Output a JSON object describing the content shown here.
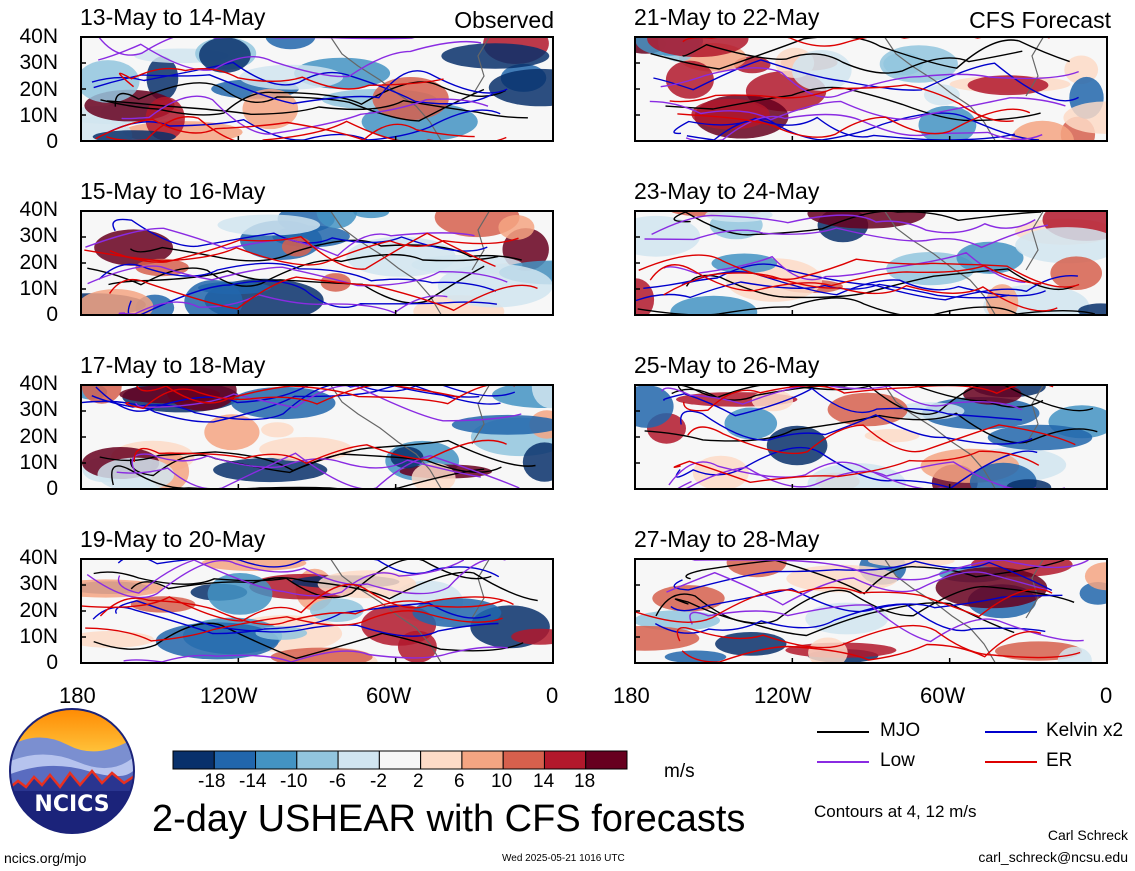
{
  "header": {
    "left_label": "Observed",
    "right_label": "CFS Forecast"
  },
  "panels_left": [
    {
      "title": "13-May to 14-May"
    },
    {
      "title": "15-May to 16-May"
    },
    {
      "title": "17-May to 18-May"
    },
    {
      "title": "19-May to 20-May"
    }
  ],
  "panels_right": [
    {
      "title": "21-May to 22-May"
    },
    {
      "title": "23-May to 24-May"
    },
    {
      "title": "25-May to 26-May"
    },
    {
      "title": "27-May to 28-May"
    }
  ],
  "chart_data": {
    "type": "heatmap",
    "title": "2-day USHEAR with CFS forecasts",
    "x_ticks": [
      "180",
      "120W",
      "60W",
      "0"
    ],
    "y_ticks": [
      "40N",
      "30N",
      "20N",
      "10N",
      "0"
    ],
    "colorbar": {
      "labels": [
        "-18",
        "-14",
        "-10",
        "-6",
        "-2",
        "2",
        "6",
        "10",
        "14",
        "18"
      ],
      "unit": "m/s",
      "colors": [
        "#08306b",
        "#2166ac",
        "#4393c3",
        "#92c5de",
        "#d1e5f0",
        "#f7f7f7",
        "#fddbc7",
        "#f4a582",
        "#d6604d",
        "#b2182b",
        "#67001f"
      ]
    },
    "legend": [
      {
        "name": "MJO",
        "color": "#000000"
      },
      {
        "name": "Kelvin x2",
        "color": "#0000cc"
      },
      {
        "name": "Low",
        "color": "#8a2be2"
      },
      {
        "name": "ER",
        "color": "#dd0000"
      }
    ],
    "contour_note": "Contours at 4, 12 m/s"
  },
  "footer": {
    "logo_text": "NCICS",
    "url": "ncics.org/mjo",
    "timestamp": "Wed 2025-05-21 1016 UTC",
    "author": "Carl Schreck",
    "email": "carl_schreck@ncsu.edu"
  }
}
